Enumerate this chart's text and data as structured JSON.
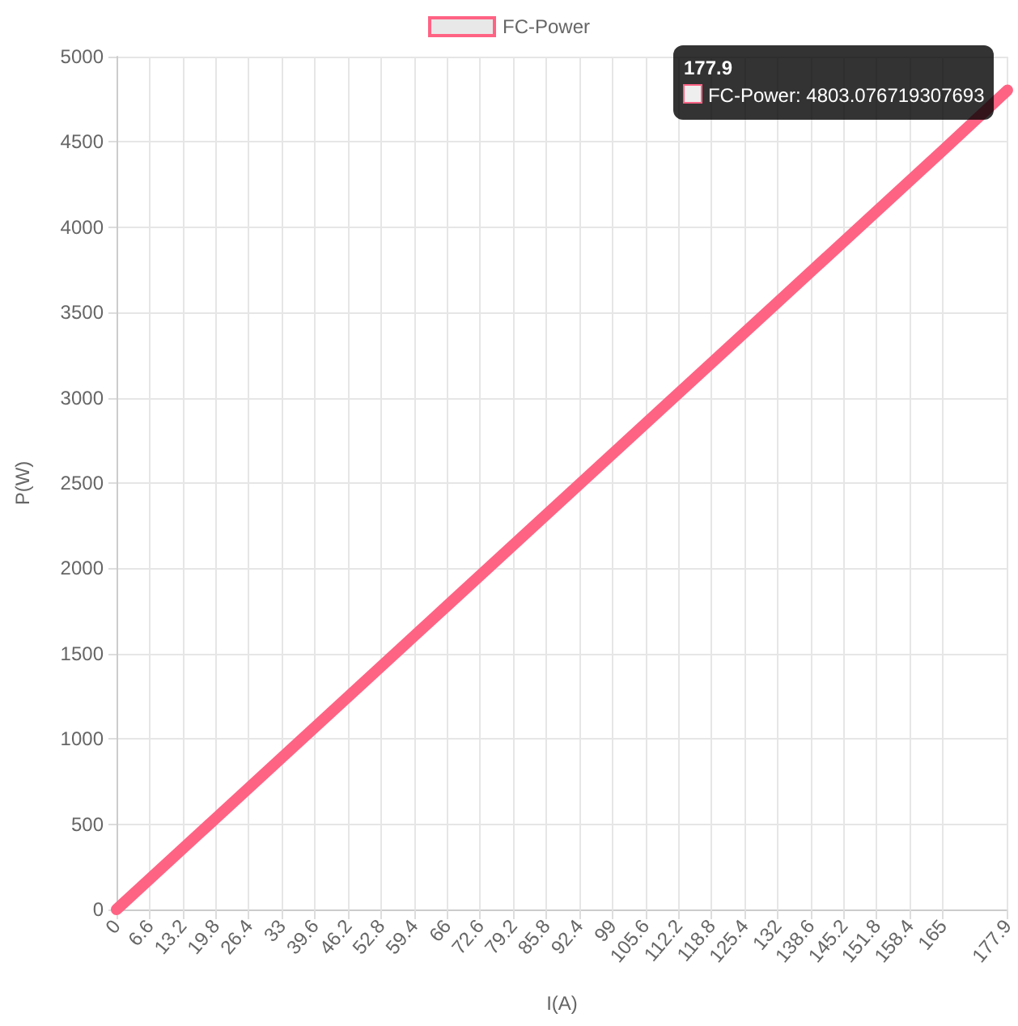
{
  "chart_data": {
    "type": "line",
    "xlabel": "I(A)",
    "ylabel": "P(W)",
    "x": [
      0,
      33,
      66,
      99,
      132,
      165,
      177.9
    ],
    "series": [
      {
        "name": "FC-Power",
        "color": "#ff6384",
        "values": [
          0,
          890,
          1780,
          2670,
          3560,
          4450,
          4803.076719307693
        ]
      }
    ],
    "xlim": [
      0,
      177.9
    ],
    "xticks": [
      0,
      6.6,
      13.2,
      19.8,
      26.4,
      33,
      39.6,
      46.2,
      52.8,
      59.4,
      66,
      72.6,
      79.2,
      85.8,
      92.4,
      99,
      105.6,
      112.2,
      118.8,
      125.4,
      132,
      138.6,
      145.2,
      151.8,
      158.4,
      165,
      177.9
    ],
    "ylim": [
      0,
      5000
    ],
    "yticks": [
      0,
      500,
      1000,
      1500,
      2000,
      2500,
      3000,
      3500,
      4000,
      4500,
      5000
    ],
    "grid": true,
    "legend": "top",
    "marker": "none",
    "line_style": "solid",
    "annotations": [
      {
        "text": "177.9\nFC-Power: 4803.076719307693",
        "x": 177.9,
        "y": 4803.076719307693
      }
    ]
  }
}
